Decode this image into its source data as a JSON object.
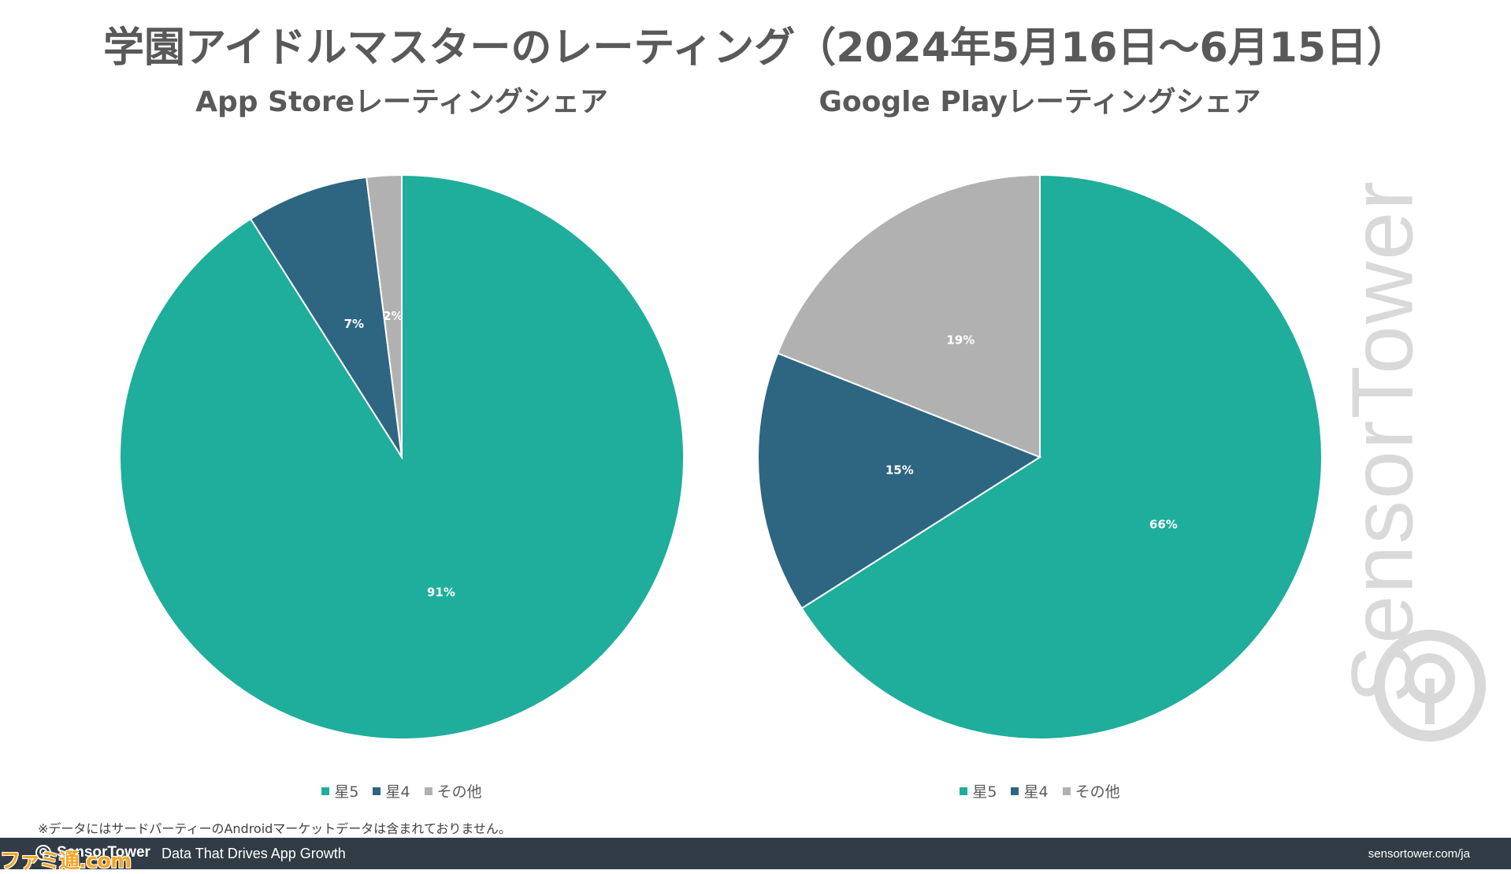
{
  "title": "学園アイドルマスターのレーティング（2024年5月16日～6月15日）",
  "chart_data": [
    {
      "type": "pie",
      "title": "App Storeレーティングシェア",
      "categories": [
        "星5",
        "星4",
        "その他"
      ],
      "values": [
        91,
        7,
        2
      ],
      "labels": [
        "91%",
        "7%",
        "2%"
      ],
      "colors": [
        "#1fad9c",
        "#2e6682",
        "#b1b1b1"
      ],
      "legend_position": "bottom"
    },
    {
      "type": "pie",
      "title": "Google Playレーティングシェア",
      "categories": [
        "星5",
        "星4",
        "その他"
      ],
      "values": [
        66,
        15,
        19
      ],
      "labels": [
        "66%",
        "15%",
        "19%"
      ],
      "colors": [
        "#1fad9c",
        "#2e6682",
        "#b1b1b1"
      ],
      "legend_position": "bottom"
    }
  ],
  "footnote": "※データにはサードパーティーのAndroidマーケットデータは含まれておりません。",
  "watermark": "SensorTower",
  "footer": {
    "brand": "SensorTower",
    "tagline": "Data That Drives App Growth",
    "url": "sensortower.com/ja"
  },
  "corner_logo": "ファミ通.com",
  "icons": {
    "watermark_logo": "sensor-tower-logo-icon",
    "footer_logo": "sensor-tower-logo-icon"
  }
}
